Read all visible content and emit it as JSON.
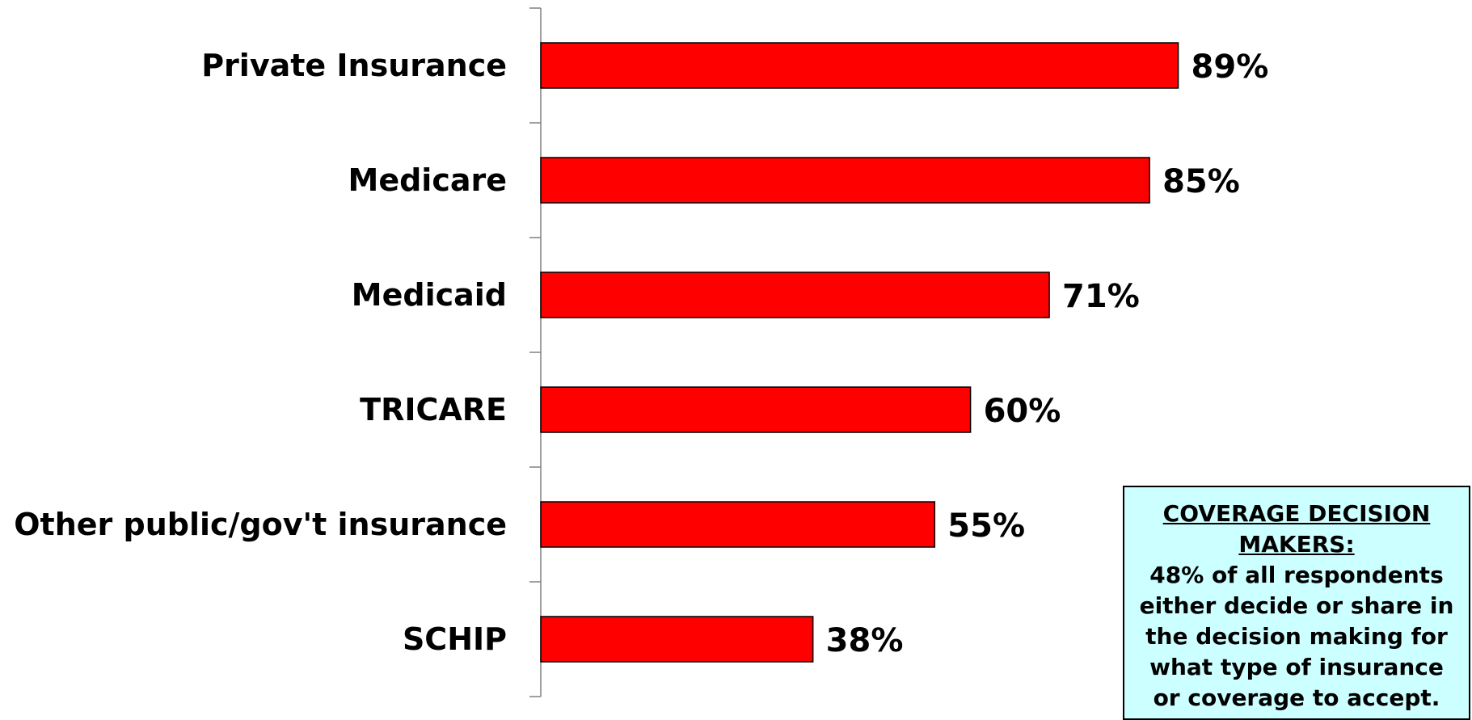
{
  "chart_data": {
    "type": "bar",
    "orientation": "horizontal",
    "categories": [
      "Private Insurance",
      "Medicare",
      "Medicaid",
      "TRICARE",
      "Other public/gov't insurance",
      "SCHIP"
    ],
    "values": [
      89,
      85,
      71,
      60,
      55,
      38
    ],
    "value_labels": [
      "89%",
      "85%",
      "71%",
      "60%",
      "55%",
      "38%"
    ],
    "xlim": [
      0,
      100
    ],
    "bar_color": "#ff0000",
    "bar_outline": "#000000",
    "grid": false,
    "legend": "none"
  },
  "callout": {
    "heading": "COVERAGE DECISION MAKERS:",
    "body": "48% of all respondents either decide or share in the decision making for what type of insurance or coverage to accept.",
    "background": "#ccffff"
  }
}
